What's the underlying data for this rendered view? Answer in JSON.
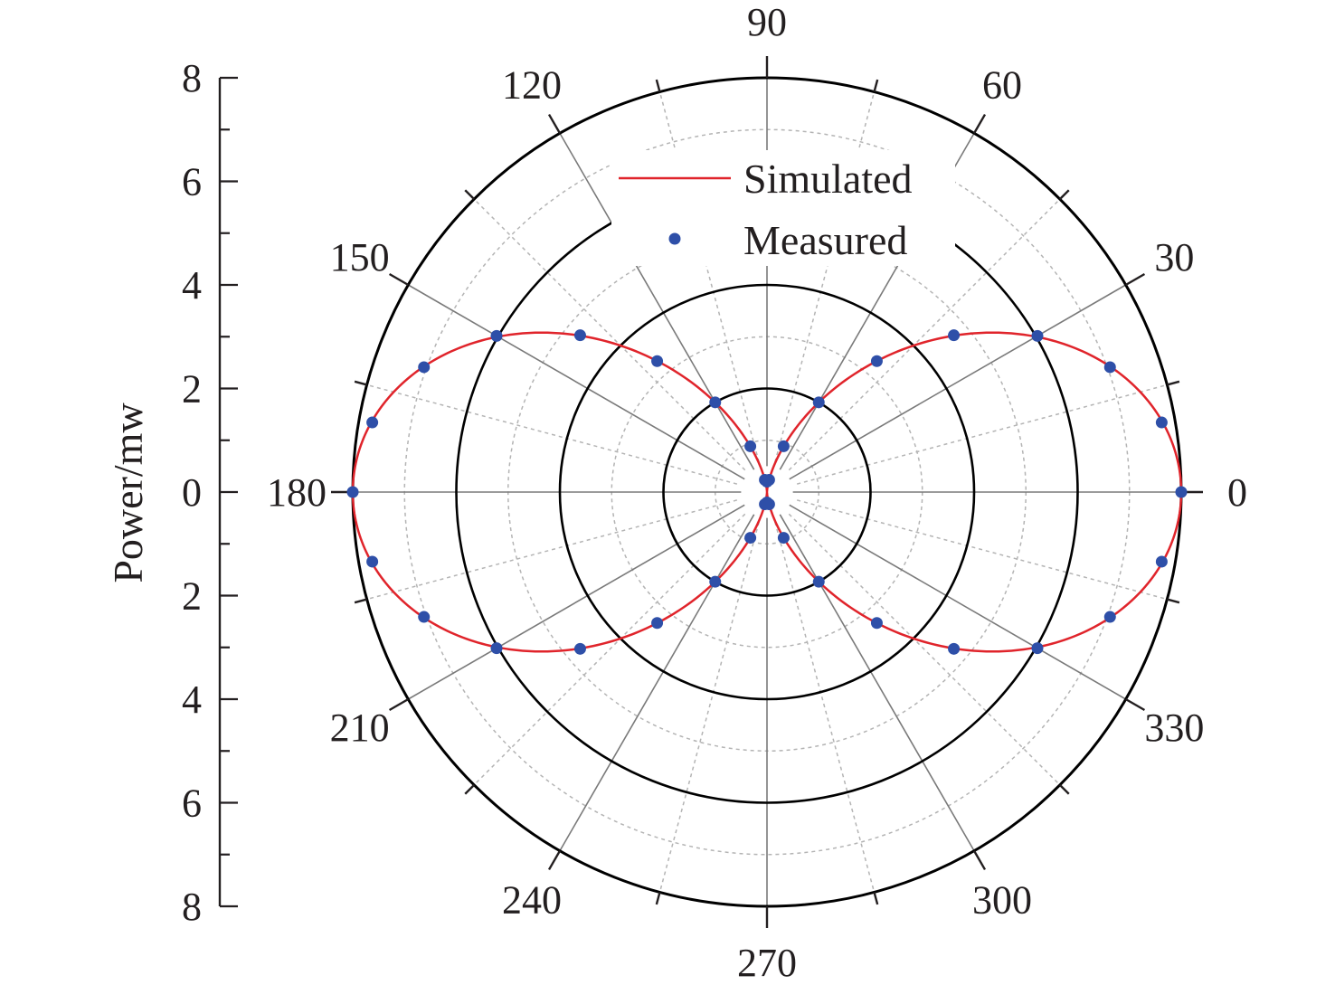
{
  "chart_data": {
    "type": "polar",
    "ylabel": "Power/mw",
    "radial_range": [
      0,
      8
    ],
    "radial_ticks": [
      "0",
      "2",
      "4",
      "6",
      "8"
    ],
    "y_axis_tick_labels": [
      "8",
      "6",
      "4",
      "2",
      "0",
      "2",
      "4",
      "6",
      "8"
    ],
    "angle_ticks": [
      "0",
      "30",
      "60",
      "90",
      "120",
      "150",
      "180",
      "210",
      "240",
      "270",
      "300",
      "330"
    ],
    "grid": true,
    "legend_position": "top",
    "colors": {
      "simulated": "#e0242b",
      "measured": "#2e4fa8",
      "axis": "#231f20",
      "major_ring": "#000000",
      "minor_ring": "#b4b4b4",
      "spoke": "#7a7a7a"
    },
    "series": [
      {
        "name": "Simulated",
        "kind": "line",
        "model": "8*cos^2(theta)",
        "peak": 8
      },
      {
        "name": "Measured",
        "kind": "scatter",
        "points": [
          {
            "angle": 0,
            "r": 8.0
          },
          {
            "angle": 10,
            "r": 7.74
          },
          {
            "angle": 20,
            "r": 7.05
          },
          {
            "angle": 30,
            "r": 6.03
          },
          {
            "angle": 40,
            "r": 4.71
          },
          {
            "angle": 50,
            "r": 3.3
          },
          {
            "angle": 60,
            "r": 2.0
          },
          {
            "angle": 70,
            "r": 0.94
          },
          {
            "angle": 80,
            "r": 0.24
          },
          {
            "angle": 90,
            "r": 0.2
          },
          {
            "angle": 100,
            "r": 0.24
          },
          {
            "angle": 110,
            "r": 0.94
          },
          {
            "angle": 120,
            "r": 2.0
          },
          {
            "angle": 130,
            "r": 3.3
          },
          {
            "angle": 140,
            "r": 4.71
          },
          {
            "angle": 150,
            "r": 6.03
          },
          {
            "angle": 160,
            "r": 7.05
          },
          {
            "angle": 170,
            "r": 7.74
          },
          {
            "angle": 180,
            "r": 8.0
          },
          {
            "angle": 190,
            "r": 7.74
          },
          {
            "angle": 200,
            "r": 7.05
          },
          {
            "angle": 210,
            "r": 6.03
          },
          {
            "angle": 220,
            "r": 4.71
          },
          {
            "angle": 230,
            "r": 3.3
          },
          {
            "angle": 240,
            "r": 2.0
          },
          {
            "angle": 250,
            "r": 0.94
          },
          {
            "angle": 260,
            "r": 0.24
          },
          {
            "angle": 270,
            "r": 0.2
          },
          {
            "angle": 280,
            "r": 0.24
          },
          {
            "angle": 290,
            "r": 0.94
          },
          {
            "angle": 300,
            "r": 2.0
          },
          {
            "angle": 310,
            "r": 3.3
          },
          {
            "angle": 320,
            "r": 4.71
          },
          {
            "angle": 330,
            "r": 6.03
          },
          {
            "angle": 340,
            "r": 7.05
          },
          {
            "angle": 350,
            "r": 7.74
          }
        ]
      }
    ]
  }
}
